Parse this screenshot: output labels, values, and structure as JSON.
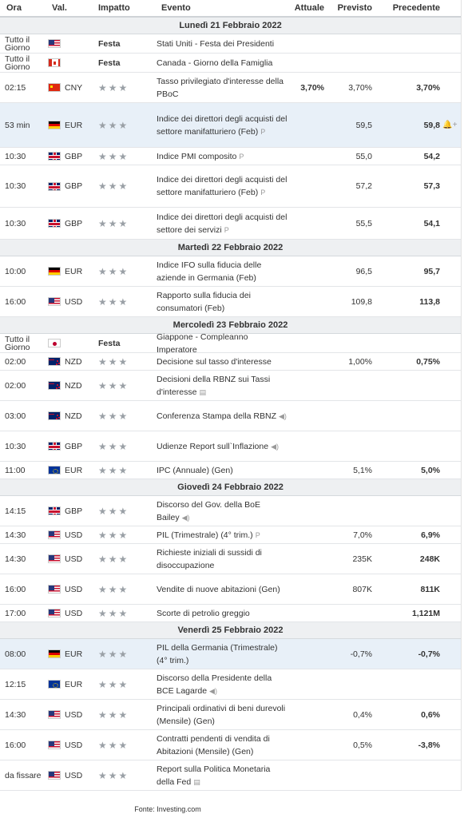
{
  "header": {
    "time": "Ora",
    "cur": "Val.",
    "imp": "Impatto",
    "event": "Evento",
    "actual": "Attuale",
    "forecast": "Previsto",
    "previous": "Precedente"
  },
  "source": "Fonte: Investing.com",
  "colors": {
    "highlight_row": "#e8f0f8",
    "day_bg": "#eef0f2",
    "stars": "#9aa0a6"
  },
  "days": [
    {
      "label": "Lunedì 21 Febbraio 2022",
      "rows": [
        {
          "time": "Tutto il Giorno",
          "flag": "us",
          "cur": "",
          "impact": "Festa",
          "event": "Stati Uniti - Festa dei Presidenti",
          "actual": "",
          "forecast": "",
          "previous": "",
          "h": 24
        },
        {
          "time": "Tutto il Giorno",
          "flag": "ca",
          "cur": "",
          "impact": "Festa",
          "event": "Canada - Giorno della Famiglia",
          "actual": "",
          "forecast": "",
          "previous": "",
          "h": 24
        },
        {
          "time": "02:15",
          "flag": "cn",
          "cur": "CNY",
          "impact": "★★★",
          "event": "Tasso privilegiato d'interesse della PBoC",
          "actual": "3,70%",
          "forecast": "3,70%",
          "previous": "3,70%",
          "h": 38
        },
        {
          "time": "53 min",
          "flag": "de",
          "cur": "EUR",
          "impact": "★★★",
          "event": "Indice dei direttori degli acquisti del settore manifatturiero (Feb)",
          "icon": "preliminary-icon",
          "actual": "",
          "forecast": "59,5",
          "previous": "59,8",
          "bell": "bell-plus-icon",
          "hl": true,
          "h": 56
        },
        {
          "time": "10:30",
          "flag": "gb",
          "cur": "GBP",
          "impact": "★★★",
          "event": "Indice PMI composito",
          "icon": "preliminary-icon",
          "actual": "",
          "forecast": "55,0",
          "previous": "54,2",
          "h": 22
        },
        {
          "time": "10:30",
          "flag": "gb",
          "cur": "GBP",
          "impact": "★★★",
          "event": "Indice dei direttori degli acquisti del settore manifatturiero (Feb)",
          "icon": "preliminary-icon",
          "actual": "",
          "forecast": "57,2",
          "previous": "57,3",
          "h": 53
        },
        {
          "time": "10:30",
          "flag": "gb",
          "cur": "GBP",
          "impact": "★★★",
          "event": "Indice dei direttori degli acquisti del settore dei servizi",
          "icon": "preliminary-icon",
          "actual": "",
          "forecast": "55,5",
          "previous": "54,1",
          "h": 40
        }
      ]
    },
    {
      "label": "Martedì 22 Febbraio 2022",
      "rows": [
        {
          "time": "10:00",
          "flag": "de",
          "cur": "EUR",
          "impact": "★★★",
          "event": "Indice IFO sulla fiducia delle aziende in Germania (Feb)",
          "actual": "",
          "forecast": "96,5",
          "previous": "95,7",
          "h": 38
        },
        {
          "time": "16:00",
          "flag": "us",
          "cur": "USD",
          "impact": "★★★",
          "event": "Rapporto sulla fiducia dei consumatori (Feb)",
          "actual": "",
          "forecast": "109,8",
          "previous": "113,8",
          "h": 38
        }
      ]
    },
    {
      "label": "Mercoledì 23 Febbraio 2022",
      "rows": [
        {
          "time": "Tutto il Giorno",
          "flag": "jp",
          "cur": "",
          "impact": "Festa",
          "event": "Giappone - Compleanno Imperatore",
          "actual": "",
          "forecast": "",
          "previous": "",
          "h": 24
        },
        {
          "time": "02:00",
          "flag": "nz",
          "cur": "NZD",
          "impact": "★★★",
          "event": "Decisione sul tasso d'interesse",
          "actual": "",
          "forecast": "1,00%",
          "previous": "0,75%",
          "h": 22
        },
        {
          "time": "02:00",
          "flag": "nz",
          "cur": "NZD",
          "impact": "★★★",
          "event": "Decisioni della RBNZ sui Tassi d'interesse",
          "icon": "document-icon",
          "actual": "",
          "forecast": "",
          "previous": "",
          "h": 38
        },
        {
          "time": "03:00",
          "flag": "nz",
          "cur": "NZD",
          "impact": "★★★",
          "event": "Conferenza Stampa della RBNZ",
          "icon": "speaker-icon",
          "actual": "",
          "forecast": "",
          "previous": "",
          "h": 38
        },
        {
          "time": "10:30",
          "flag": "gb",
          "cur": "GBP",
          "impact": "★★★",
          "event": "Udienze Report sull`Inflazione",
          "icon": "speaker-icon",
          "actual": "",
          "forecast": "",
          "previous": "",
          "h": 38
        },
        {
          "time": "11:00",
          "flag": "eu",
          "cur": "EUR",
          "impact": "★★★",
          "event": "IPC (Annuale) (Gen)",
          "actual": "",
          "forecast": "5,1%",
          "previous": "5,0%",
          "h": 22
        }
      ]
    },
    {
      "label": "Giovedì 24 Febbraio 2022",
      "rows": [
        {
          "time": "14:15",
          "flag": "gb",
          "cur": "GBP",
          "impact": "★★★",
          "event": "Discorso del Gov. della BoE Bailey",
          "icon": "speaker-icon",
          "actual": "",
          "forecast": "",
          "previous": "",
          "h": 38
        },
        {
          "time": "14:30",
          "flag": "us",
          "cur": "USD",
          "impact": "★★★",
          "event": "PIL (Trimestrale) (4° trim.)",
          "icon": "preliminary-icon",
          "actual": "",
          "forecast": "7,0%",
          "previous": "6,9%",
          "h": 22
        },
        {
          "time": "14:30",
          "flag": "us",
          "cur": "USD",
          "impact": "★★★",
          "event": "Richieste iniziali di sussidi di disoccupazione",
          "actual": "",
          "forecast": "235K",
          "previous": "248K",
          "h": 38
        },
        {
          "time": "16:00",
          "flag": "us",
          "cur": "USD",
          "impact": "★★★",
          "event": "Vendite di nuove abitazioni (Gen)",
          "actual": "",
          "forecast": "807K",
          "previous": "811K",
          "h": 38
        },
        {
          "time": "17:00",
          "flag": "us",
          "cur": "USD",
          "impact": "★★★",
          "event": "Scorte di petrolio greggio",
          "actual": "",
          "forecast": "",
          "previous": "1,121M",
          "h": 22
        }
      ]
    },
    {
      "label": "Venerdì 25 Febbraio 2022",
      "rows": [
        {
          "time": "08:00",
          "flag": "de",
          "cur": "EUR",
          "impact": "★★★",
          "event": "PIL della Germania (Trimestrale) (4° trim.)",
          "actual": "",
          "forecast": "-0,7%",
          "previous": "-0,7%",
          "hl": true,
          "h": 38
        },
        {
          "time": "12:15",
          "flag": "eu",
          "cur": "EUR",
          "impact": "★★★",
          "event": "Discorso della Presidente della BCE Lagarde",
          "icon": "speaker-icon",
          "actual": "",
          "forecast": "",
          "previous": "",
          "h": 38
        },
        {
          "time": "14:30",
          "flag": "us",
          "cur": "USD",
          "impact": "★★★",
          "event": "Principali ordinativi di beni durevoli (Mensile) (Gen)",
          "actual": "",
          "forecast": "0,4%",
          "previous": "0,6%",
          "h": 38
        },
        {
          "time": "16:00",
          "flag": "us",
          "cur": "USD",
          "impact": "★★★",
          "event": "Contratti pendenti di vendita di Abitazioni (Mensile) (Gen)",
          "actual": "",
          "forecast": "0,5%",
          "previous": "-3,8%",
          "h": 38
        },
        {
          "time": "da fissare",
          "flag": "us",
          "cur": "USD",
          "impact": "★★★",
          "event": "Report sulla Politica Monetaria della Fed",
          "icon": "document-icon",
          "actual": "",
          "forecast": "",
          "previous": "",
          "h": 38
        }
      ]
    }
  ]
}
